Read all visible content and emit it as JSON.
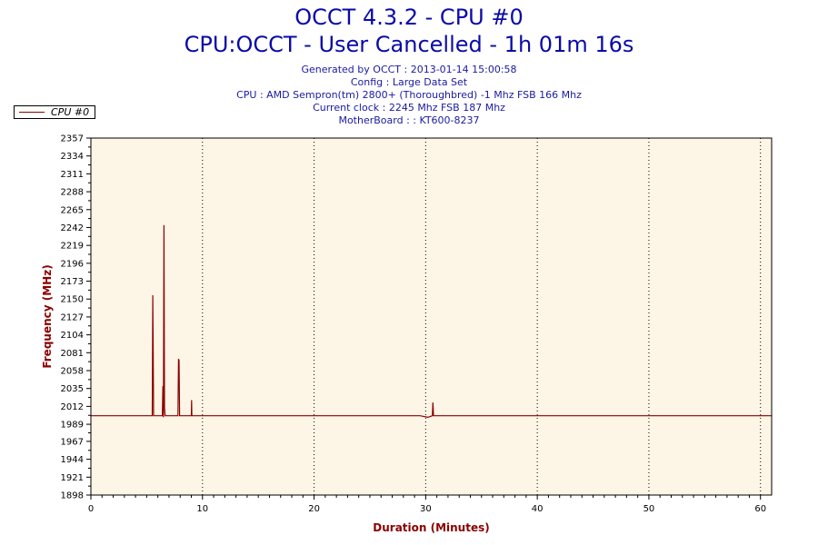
{
  "header": {
    "title": "OCCT 4.3.2 - CPU #0",
    "subtitle": "CPU:OCCT - User Cancelled - 1h 01m 16s",
    "generated": "Generated by OCCT : 2013-01-14 15:00:58",
    "config": "Config : Large Data Set",
    "cpu": "CPU : AMD Sempron(tm) 2800+ (Thoroughbred) -1 Mhz FSB 166 Mhz",
    "clock": "Current clock : 2245 Mhz FSB 187 Mhz",
    "motherboard": "MotherBoard : : KT600-8237"
  },
  "legend": {
    "label": "CPU #0"
  },
  "colors": {
    "line": "#8b0000",
    "plot_bg": "#fdf5e6",
    "title": "#0a0aa8",
    "axis_title": "#8b0000"
  },
  "chart_data": {
    "type": "line",
    "xlabel": "Duration (Minutes)",
    "ylabel": "Frequency (MHz)",
    "xlim": [
      0,
      61
    ],
    "ylim": [
      1898,
      2357
    ],
    "x_ticks": [
      "0",
      "10",
      "20",
      "30",
      "40",
      "50",
      "60"
    ],
    "y_ticks": [
      "1898",
      "1921",
      "1944",
      "1967",
      "1989",
      "2012",
      "2035",
      "2058",
      "2081",
      "2104",
      "2127",
      "2150",
      "2173",
      "2196",
      "2219",
      "2242",
      "2265",
      "2288",
      "2311",
      "2334",
      "2357"
    ],
    "grid": "vertical dotted",
    "legend_position": "top-left",
    "series": [
      {
        "name": "CPU #0",
        "x": [
          0,
          5.4,
          5.5,
          5.55,
          5.6,
          5.62,
          5.7,
          6.4,
          6.45,
          6.5,
          6.55,
          6.6,
          6.65,
          6.7,
          7.8,
          7.85,
          7.9,
          7.95,
          8.0,
          9.0,
          9.02,
          9.05,
          9.1,
          29.5,
          30.2,
          30.6,
          30.65,
          30.7,
          30.8,
          61
        ],
        "values": [
          2000,
          2000,
          2000,
          2155,
          2040,
          2000,
          2000,
          2000,
          2038,
          1998,
          2245,
          2010,
          2000,
          2000,
          2000,
          2073,
          2071,
          2000,
          2000,
          2000,
          2020,
          2000,
          2000,
          2000,
          1998,
          2000,
          2017,
          2000,
          2000,
          2000
        ]
      }
    ]
  }
}
